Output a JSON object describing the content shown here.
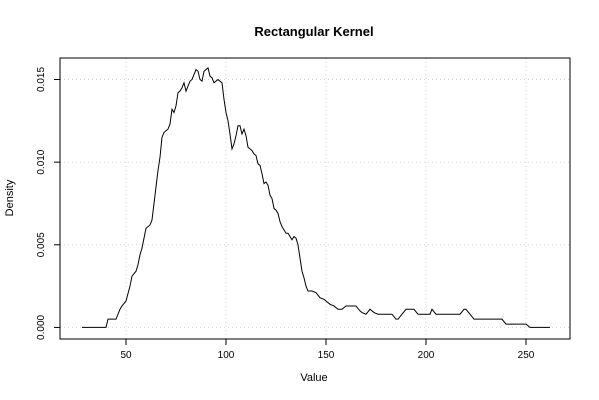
{
  "chart_data": {
    "type": "line",
    "title": "Rectangular Kernel",
    "xlabel": "Value",
    "ylabel": "Density",
    "xlim": [
      17,
      272
    ],
    "ylim": [
      -0.0007,
      0.0163
    ],
    "x_ticks": [
      50,
      100,
      150,
      200,
      250
    ],
    "y_ticks": [
      0.0,
      0.005,
      0.01,
      0.015
    ],
    "x_tick_labels": [
      "50",
      "100",
      "150",
      "200",
      "250"
    ],
    "y_tick_labels": [
      "0.000",
      "0.005",
      "0.010",
      "0.015"
    ],
    "grid": true,
    "series": [
      {
        "x": [
          28,
          36,
          40,
          41,
          45,
          46,
          47,
          48,
          50,
          52,
          53,
          55,
          56,
          57,
          58,
          60,
          62,
          63,
          65,
          66,
          67,
          68,
          69,
          70,
          71,
          72,
          73,
          74,
          75,
          76,
          77,
          78,
          79,
          80,
          82,
          83,
          84,
          85,
          86,
          87,
          88,
          89,
          90,
          91,
          92,
          93,
          94,
          96,
          97,
          98,
          99,
          100,
          101,
          102,
          103,
          104,
          105,
          106,
          107,
          108,
          109,
          110,
          111,
          112,
          113,
          114,
          115,
          116,
          117,
          118,
          119,
          120,
          121,
          122,
          123,
          124,
          125,
          126,
          127,
          128,
          129,
          130,
          131,
          132,
          133,
          134,
          135,
          136,
          137,
          138,
          139,
          140,
          141,
          142,
          143,
          145,
          147,
          149,
          150,
          152,
          154,
          156,
          158,
          160,
          162,
          165,
          167,
          168,
          170,
          172,
          174,
          176,
          178,
          180,
          183,
          185,
          186,
          188,
          190,
          192,
          194,
          196,
          200,
          202,
          203,
          205,
          208,
          212,
          215,
          217,
          219,
          220,
          222,
          224,
          228,
          232,
          234,
          236,
          238,
          240,
          244,
          248,
          250,
          252,
          256,
          262
        ],
        "values": [
          0.0,
          0.0,
          0.0,
          0.0005,
          0.0005,
          0.0008,
          0.0011,
          0.0013,
          0.0016,
          0.0025,
          0.0031,
          0.0034,
          0.0038,
          0.0044,
          0.0048,
          0.006,
          0.0062,
          0.0065,
          0.0085,
          0.0095,
          0.0103,
          0.0115,
          0.0118,
          0.0119,
          0.012,
          0.0123,
          0.0132,
          0.013,
          0.0134,
          0.0142,
          0.0143,
          0.0145,
          0.0148,
          0.0143,
          0.0149,
          0.015,
          0.0153,
          0.0156,
          0.0155,
          0.015,
          0.0149,
          0.0155,
          0.0156,
          0.0157,
          0.0152,
          0.0151,
          0.0148,
          0.015,
          0.0149,
          0.0148,
          0.0138,
          0.013,
          0.0125,
          0.0117,
          0.0108,
          0.0111,
          0.0116,
          0.0122,
          0.0122,
          0.0117,
          0.012,
          0.0116,
          0.0109,
          0.0108,
          0.0107,
          0.0105,
          0.0104,
          0.0099,
          0.0098,
          0.0093,
          0.0087,
          0.0088,
          0.0086,
          0.008,
          0.0078,
          0.0072,
          0.0071,
          0.0069,
          0.0064,
          0.0061,
          0.0059,
          0.0057,
          0.0057,
          0.0055,
          0.0053,
          0.0055,
          0.0054,
          0.005,
          0.0042,
          0.0034,
          0.003,
          0.0025,
          0.0022,
          0.0022,
          0.0022,
          0.0021,
          0.0018,
          0.0017,
          0.0016,
          0.0014,
          0.0013,
          0.0011,
          0.0011,
          0.0013,
          0.0013,
          0.0013,
          0.001,
          0.0009,
          0.0008,
          0.0011,
          0.0009,
          0.0008,
          0.0008,
          0.0008,
          0.0008,
          0.0005,
          0.0005,
          0.0008,
          0.0011,
          0.0011,
          0.0011,
          0.0008,
          0.0008,
          0.0008,
          0.0011,
          0.0008,
          0.0008,
          0.0008,
          0.0008,
          0.0008,
          0.0011,
          0.0011,
          0.0008,
          0.0005,
          0.0005,
          0.0005,
          0.0005,
          0.0005,
          0.0005,
          0.0002,
          0.0002,
          0.0002,
          0.0002,
          0.0,
          0.0,
          0.0
        ]
      }
    ]
  }
}
